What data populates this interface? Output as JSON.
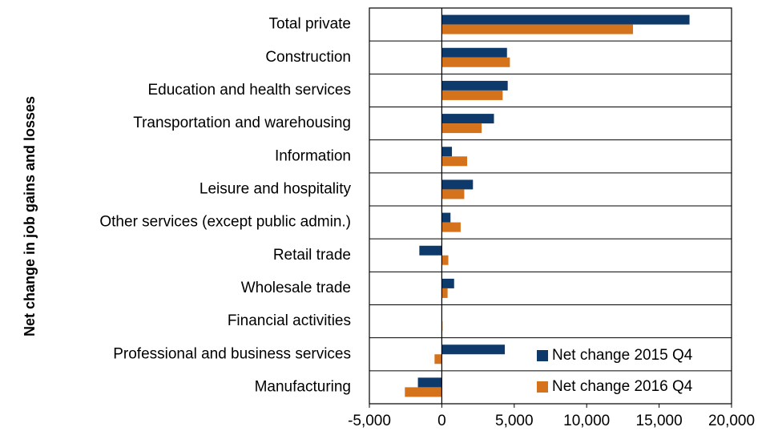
{
  "chart_data": {
    "type": "bar",
    "orientation": "horizontal",
    "y_axis_label": "Net change in job gains and losses",
    "categories": [
      "Total private",
      "Construction",
      "Education and health services",
      "Transportation and warehousing",
      "Information",
      "Leisure and hospitality",
      "Other services (except public admin.)",
      "Retail trade",
      "Wholesale trade",
      "Financial activities",
      "Professional and business services",
      "Manufacturing"
    ],
    "series": [
      {
        "name": "Net change 2015 Q4",
        "color": "#0e3a6b",
        "values": [
          17100,
          4500,
          4550,
          3600,
          700,
          2150,
          600,
          -1550,
          850,
          0,
          4350,
          -1650
        ]
      },
      {
        "name": "Net change 2016 Q4",
        "color": "#d5721c",
        "values": [
          13200,
          4700,
          4200,
          2750,
          1750,
          1550,
          1300,
          450,
          400,
          50,
          -500,
          -2550
        ]
      }
    ],
    "xlim": [
      -5000,
      20000
    ],
    "xticks": [
      {
        "value": -5000,
        "label": "-5,000"
      },
      0,
      {
        "value": 5000,
        "label": "5,000"
      },
      {
        "value": 10000,
        "label": "10,000"
      },
      {
        "value": 15000,
        "label": "15,000"
      },
      {
        "value": 20000,
        "label": "20,000"
      }
    ],
    "grid": true,
    "legend": "lower right"
  }
}
